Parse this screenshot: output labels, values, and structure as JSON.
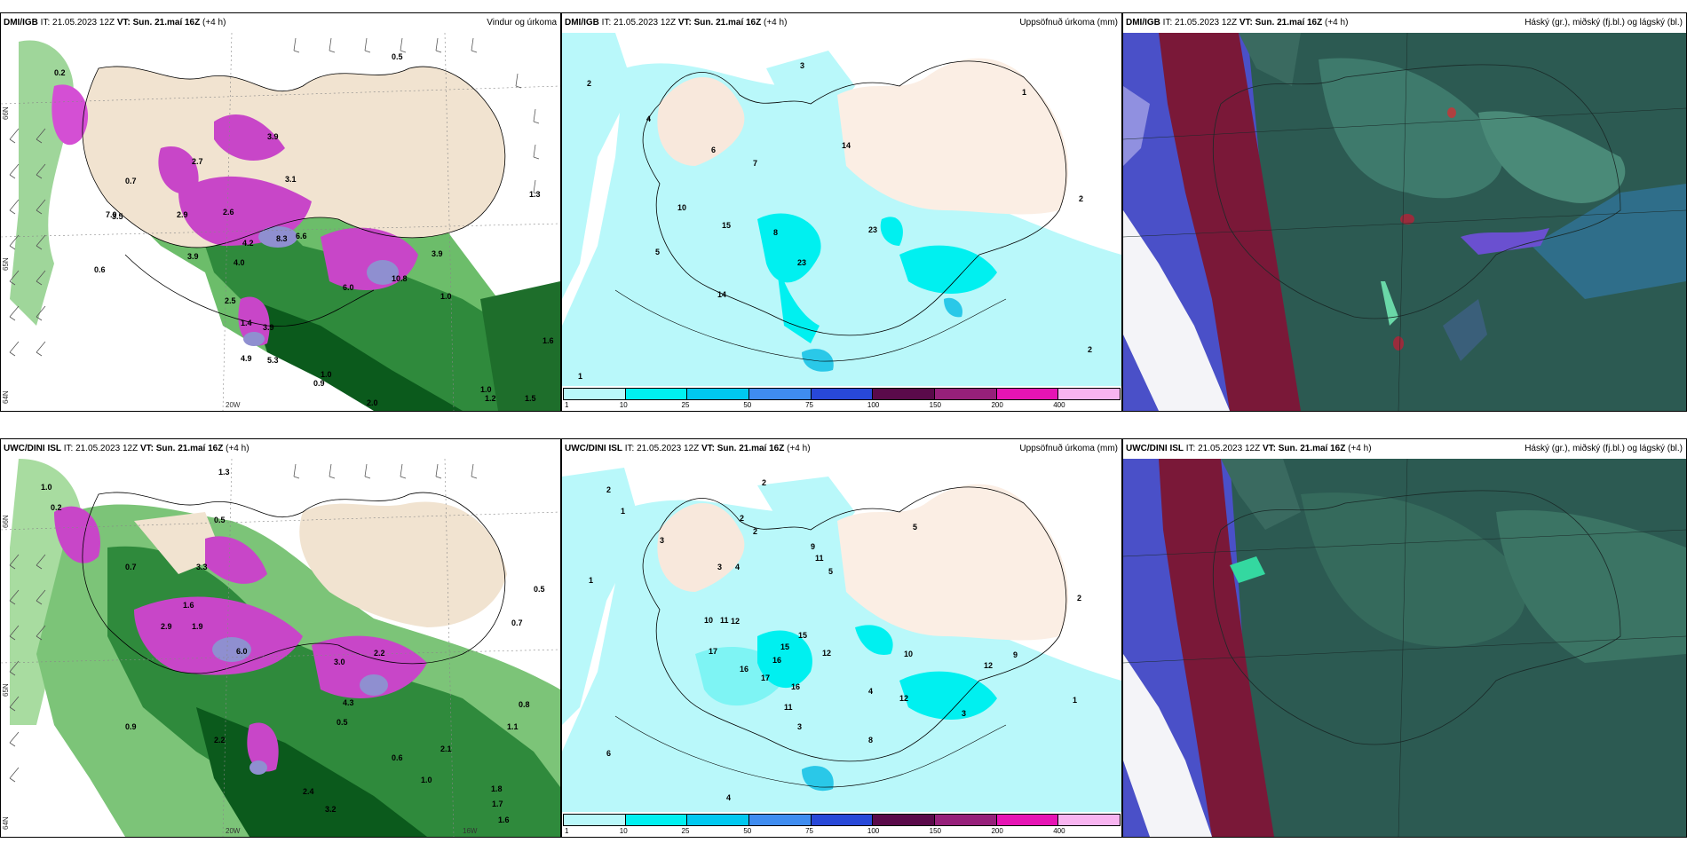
{
  "panels": [
    {
      "id": "dmi-wind",
      "model": "DMI/IGB",
      "it_label": "IT:",
      "it": "21.05.2023 12Z",
      "vt_label": "VT:",
      "vt": "Sun. 21.maí 16Z",
      "lead": "(+4 h)",
      "title": "Vindur og úrkoma"
    },
    {
      "id": "dmi-accum",
      "model": "DMI/IGB",
      "it_label": "IT:",
      "it": "21.05.2023 12Z",
      "vt_label": "VT:",
      "vt": "Sun. 21.maí 16Z",
      "lead": "(+4 h)",
      "title": "Uppsöfnuð úrkoma (mm)"
    },
    {
      "id": "dmi-cloud",
      "model": "DMI/IGB",
      "it_label": "IT:",
      "it": "21.05.2023 12Z",
      "vt_label": "VT:",
      "vt": "Sun. 21.maí 16Z",
      "lead": "(+4 h)",
      "title": "Háský (gr.), miðský (fj.bl.) og lágský (bl.)"
    },
    {
      "id": "uwc-wind",
      "model": "UWC/DINI ISL",
      "it_label": "IT:",
      "it": "21.05.2023 12Z",
      "vt_label": "VT:",
      "vt": "Sun. 21.maí 16Z",
      "lead": "(+4 h)",
      "title": ""
    },
    {
      "id": "uwc-accum",
      "model": "UWC/DINI ISL",
      "it_label": "IT:",
      "it": "21.05.2023 12Z",
      "vt_label": "VT:",
      "vt": "Sun. 21.maí 16Z",
      "lead": "(+4 h)",
      "title": "Uppsöfnuð úrkoma (mm)"
    },
    {
      "id": "uwc-cloud",
      "model": "UWC/DINI ISL",
      "it_label": "IT:",
      "it": "21.05.2023 12Z",
      "vt_label": "VT:",
      "vt": "Sun. 21.maí 16Z",
      "lead": "(+4 h)",
      "title": "Háský (gr.), miðský (fj.bl.) og lágský (bl.)"
    }
  ],
  "legend": {
    "ticks": [
      "1",
      "10",
      "25",
      "50",
      "75",
      "100",
      "150",
      "200",
      "400"
    ],
    "colors": [
      "#b9f8fa",
      "#00f0f0",
      "#00c8f0",
      "#3f8cf0",
      "#2848d8",
      "#5a0a4a",
      "#96207a",
      "#e614b4",
      "#f8b4f0"
    ]
  },
  "axis_labels": {
    "lat66": "66N",
    "lat65": "65N",
    "lat64": "64N",
    "lon20": "20W",
    "lon16": "16W"
  },
  "wind_values_dmi": [
    "0.2",
    "0.5",
    "0.7",
    "2.7",
    "3.5",
    "2.9",
    "2.6",
    "4.2",
    "8.3",
    "6.6",
    "3.9",
    "4.0",
    "6.0",
    "10.8",
    "3.9",
    "2.5",
    "3.9",
    "1.4",
    "1.0",
    "3.9",
    "4.9",
    "5.3",
    "0.6",
    "1.0",
    "0.9",
    "1.0",
    "1.6",
    "1.2",
    "1.5",
    "2.0",
    "3.1",
    "1.3",
    "7.0"
  ],
  "wind_values_uwc": [
    "1.0",
    "0.2",
    "0.5",
    "1.3",
    "0.7",
    "1.6",
    "2.9",
    "1.9",
    "3.3",
    "3.0",
    "2.2",
    "4.3",
    "0.5",
    "6.0",
    "1.1",
    "0.9",
    "3.2",
    "2.4",
    "0.6",
    "1.0",
    "1.8",
    "1.7",
    "1.6",
    "0.8",
    "0.5",
    "0.7",
    "2.2",
    "2.1"
  ],
  "accum_values_dmi": [
    "2",
    "3",
    "1",
    "4",
    "6",
    "7",
    "14",
    "10",
    "15",
    "5",
    "14",
    "23",
    "23",
    "8",
    "2",
    "2",
    "1"
  ],
  "accum_values_uwc": [
    "2",
    "1",
    "2",
    "3",
    "1",
    "2",
    "3",
    "4",
    "2",
    "9",
    "11",
    "5",
    "10",
    "11",
    "12",
    "15",
    "15",
    "17",
    "16",
    "12",
    "17",
    "16",
    "16",
    "10",
    "4",
    "8",
    "3",
    "12",
    "12",
    "11",
    "9",
    "6",
    "3",
    "5",
    "2",
    "1",
    "4"
  ]
}
